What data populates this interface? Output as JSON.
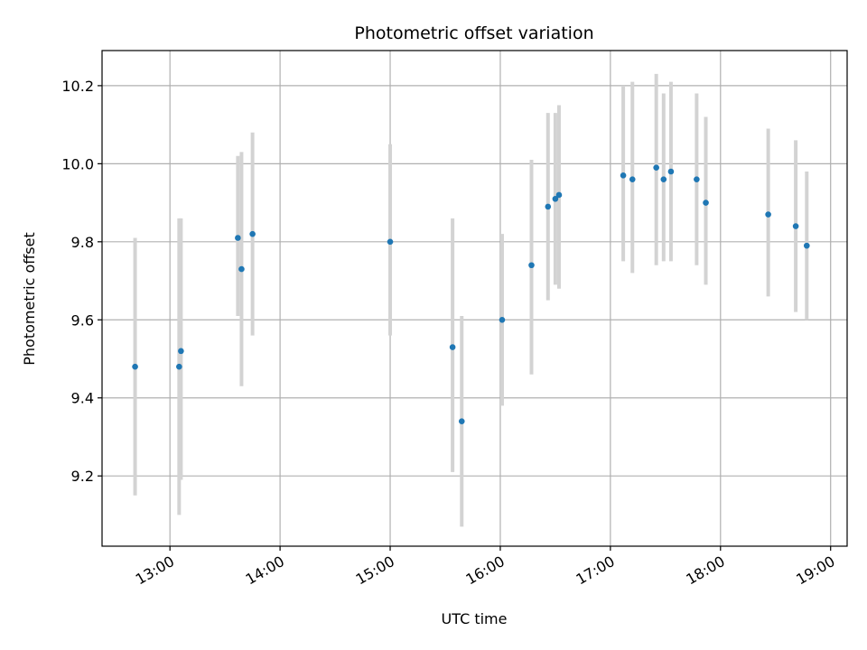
{
  "chart_data": {
    "type": "scatter",
    "title": "Photometric offset variation",
    "xlabel": "UTC time",
    "ylabel": "Photometric offset",
    "x_ticks": [
      "13:00",
      "14:00",
      "15:00",
      "16:00",
      "17:00",
      "18:00",
      "19:00"
    ],
    "y_ticks": [
      "9.2",
      "9.4",
      "9.6",
      "9.8",
      "10.0",
      "10.2"
    ],
    "xlim": [
      "12:23",
      "19:09"
    ],
    "ylim": [
      9.02,
      10.29
    ],
    "grid": true,
    "legend": "none",
    "series": [
      {
        "marker_color": "#1f77b4",
        "errorbar_color": "#d3d3d3",
        "points": [
          {
            "x": "12:41",
            "y": 9.48,
            "err_low": 9.15,
            "err_high": 9.81
          },
          {
            "x": "13:05",
            "y": 9.48,
            "err_low": 9.1,
            "err_high": 9.86
          },
          {
            "x": "13:06",
            "y": 9.52,
            "err_low": 9.19,
            "err_high": 9.86
          },
          {
            "x": "13:37",
            "y": 9.81,
            "err_low": 9.61,
            "err_high": 10.02
          },
          {
            "x": "13:39",
            "y": 9.73,
            "err_low": 9.43,
            "err_high": 10.03
          },
          {
            "x": "13:45",
            "y": 9.82,
            "err_low": 9.56,
            "err_high": 10.08
          },
          {
            "x": "15:00",
            "y": 9.8,
            "err_low": 9.56,
            "err_high": 10.05
          },
          {
            "x": "15:34",
            "y": 9.53,
            "err_low": 9.21,
            "err_high": 9.86
          },
          {
            "x": "15:39",
            "y": 9.34,
            "err_low": 9.07,
            "err_high": 9.61
          },
          {
            "x": "16:01",
            "y": 9.6,
            "err_low": 9.38,
            "err_high": 9.82
          },
          {
            "x": "16:17",
            "y": 9.74,
            "err_low": 9.46,
            "err_high": 10.01
          },
          {
            "x": "16:26",
            "y": 9.89,
            "err_low": 9.65,
            "err_high": 10.13
          },
          {
            "x": "16:30",
            "y": 9.91,
            "err_low": 9.69,
            "err_high": 10.13
          },
          {
            "x": "16:32",
            "y": 9.92,
            "err_low": 9.68,
            "err_high": 10.15
          },
          {
            "x": "17:07",
            "y": 9.97,
            "err_low": 9.75,
            "err_high": 10.2
          },
          {
            "x": "17:12",
            "y": 9.96,
            "err_low": 9.72,
            "err_high": 10.21
          },
          {
            "x": "17:25",
            "y": 9.99,
            "err_low": 9.74,
            "err_high": 10.23
          },
          {
            "x": "17:29",
            "y": 9.96,
            "err_low": 9.75,
            "err_high": 10.18
          },
          {
            "x": "17:33",
            "y": 9.98,
            "err_low": 9.75,
            "err_high": 10.21
          },
          {
            "x": "17:47",
            "y": 9.96,
            "err_low": 9.74,
            "err_high": 10.18
          },
          {
            "x": "17:52",
            "y": 9.9,
            "err_low": 9.69,
            "err_high": 10.12
          },
          {
            "x": "18:26",
            "y": 9.87,
            "err_low": 9.66,
            "err_high": 10.09
          },
          {
            "x": "18:41",
            "y": 9.84,
            "err_low": 9.62,
            "err_high": 10.06
          },
          {
            "x": "18:47",
            "y": 9.79,
            "err_low": 9.6,
            "err_high": 9.98
          }
        ]
      }
    ]
  }
}
